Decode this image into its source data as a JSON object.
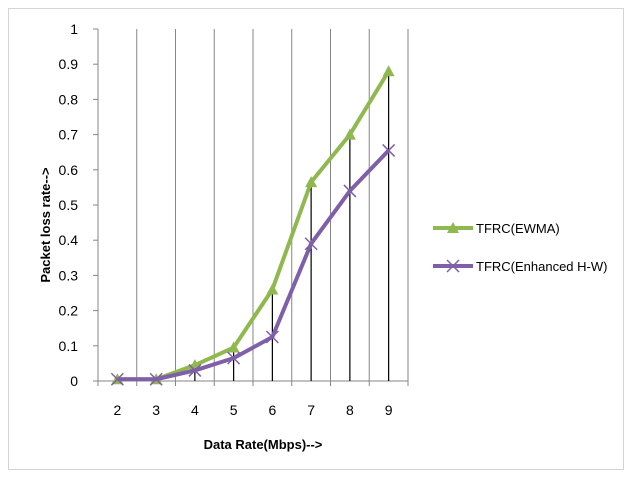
{
  "chart_data": {
    "type": "line",
    "title": "",
    "xlabel": "Data Rate(Mbps)-->",
    "ylabel": "Packet loss rate-->",
    "x": [
      2,
      3,
      4,
      5,
      6,
      7,
      8,
      9
    ],
    "ylim": [
      0,
      1
    ],
    "yticks": [
      "0",
      "0.1",
      "0.2",
      "0.3",
      "0.4",
      "0.5",
      "0.6",
      "0.7",
      "0.8",
      "0.9",
      "1"
    ],
    "xticks": [
      "2",
      "3",
      "4",
      "5",
      "6",
      "7",
      "8",
      "9"
    ],
    "grid": "vertical",
    "legend_position": "right",
    "series": [
      {
        "name": "TFRC(EWMA)",
        "color": "#8fb84f",
        "marker": "triangle",
        "values": [
          0.005,
          0.005,
          0.045,
          0.095,
          0.26,
          0.565,
          0.7,
          0.88
        ]
      },
      {
        "name": "TFRC(Enhanced H-W)",
        "color": "#7f5fa8",
        "marker": "x",
        "values": [
          0.005,
          0.005,
          0.03,
          0.065,
          0.125,
          0.39,
          0.54,
          0.655
        ]
      }
    ],
    "drop_lines_x": [
      4,
      5,
      6,
      7,
      8,
      9
    ],
    "drop_line_color": "#000000"
  }
}
